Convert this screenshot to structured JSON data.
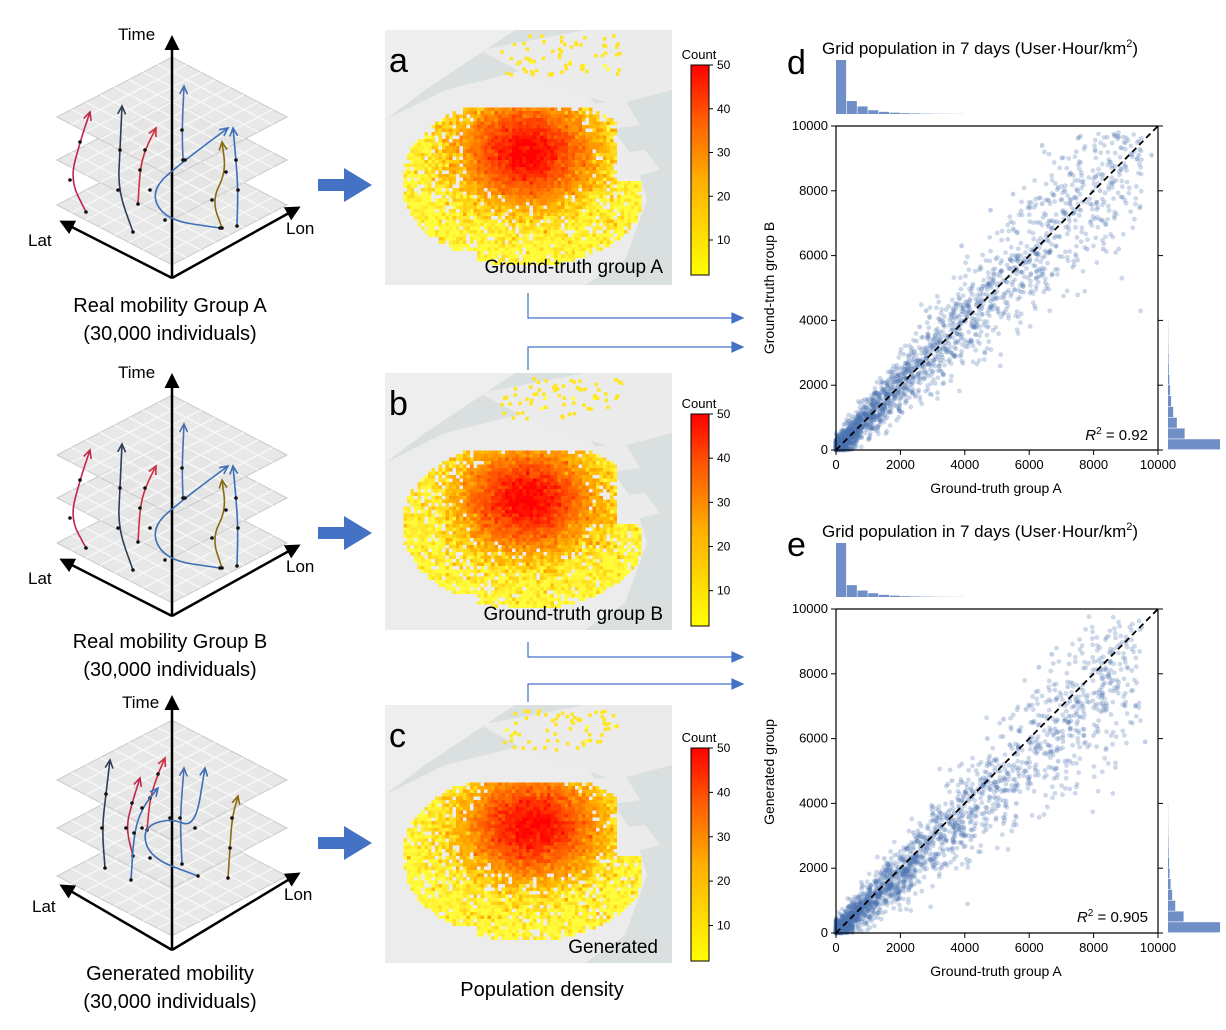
{
  "left_diagrams": [
    {
      "axis_time": "Time",
      "axis_lat": "Lat",
      "axis_lon": "Lon",
      "caption_line1": "Real mobility Group A",
      "caption_line2": "(30,000 individuals)"
    },
    {
      "axis_time": "Time",
      "axis_lat": "Lat",
      "axis_lon": "Lon",
      "caption_line1": "Real mobility Group B",
      "caption_line2": "(30,000 individuals)"
    },
    {
      "axis_time": "Time",
      "axis_lat": "Lat",
      "axis_lon": "Lon",
      "caption_line1": "Generated mobility",
      "caption_line2": "(30,000 individuals)"
    }
  ],
  "maps": [
    {
      "panel_letter": "a",
      "label": "Ground-truth group A",
      "colorbar_title": "Count",
      "ticks": [
        "50",
        "40",
        "30",
        "20",
        "10"
      ]
    },
    {
      "panel_letter": "b",
      "label": "Ground-truth group B",
      "colorbar_title": "Count",
      "ticks": [
        "50",
        "40",
        "30",
        "20",
        "10"
      ]
    },
    {
      "panel_letter": "c",
      "label": "Generated",
      "colorbar_title": "Count",
      "ticks": [
        "50",
        "40",
        "30",
        "20",
        "10"
      ]
    }
  ],
  "maps_caption": "Population density",
  "colors": {
    "arrow": "#4472c4",
    "scatter": "#4c72b0",
    "hist": "#6f8fc6",
    "heat_low": "#ffff00",
    "heat_high": "#ff0000"
  },
  "chart_data": [
    {
      "type": "scatter",
      "panel_letter": "d",
      "title_main": "Grid population in 7 days (User·Hour/km",
      "title_sup": "2",
      "title_close": ")",
      "xlabel": "Ground-truth group A",
      "ylabel": "Ground-truth group B",
      "xlim": [
        0,
        10000
      ],
      "ylim": [
        0,
        10000
      ],
      "xticks": [
        "0",
        "2000",
        "4000",
        "6000",
        "8000",
        "10000"
      ],
      "yticks": [
        "0",
        "2000",
        "4000",
        "6000",
        "8000",
        "10000"
      ],
      "r2_label": "R",
      "r2_value": " = 0.92",
      "identity_line": true,
      "top_hist": [
        1.0,
        0.24,
        0.14,
        0.07,
        0.04,
        0.025,
        0.015,
        0.01,
        0.006,
        0.004,
        0.003,
        0.002
      ],
      "right_hist": [
        1.0,
        0.32,
        0.17,
        0.1,
        0.06,
        0.04,
        0.025,
        0.015,
        0.01,
        0.006,
        0.004,
        0.003
      ],
      "points_sample": [
        [
          120,
          150
        ],
        [
          300,
          260
        ],
        [
          520,
          610
        ],
        [
          800,
          720
        ],
        [
          1100,
          1250
        ],
        [
          1500,
          1400
        ],
        [
          1900,
          2100
        ],
        [
          2400,
          2250
        ],
        [
          3000,
          3200
        ],
        [
          3500,
          3300
        ],
        [
          4100,
          4300
        ],
        [
          4800,
          4600
        ],
        [
          5400,
          5600
        ],
        [
          6000,
          5800
        ],
        [
          6600,
          6900
        ],
        [
          7100,
          7300
        ],
        [
          7600,
          7400
        ],
        [
          8200,
          8000
        ],
        [
          8800,
          8600
        ],
        [
          9400,
          9100
        ],
        [
          3900,
          6300
        ],
        [
          5500,
          7900
        ],
        [
          4800,
          7400
        ],
        [
          6400,
          7600
        ],
        [
          6900,
          8100
        ],
        [
          7500,
          8000
        ],
        [
          2800,
          4300
        ],
        [
          2600,
          3800
        ],
        [
          4200,
          3400
        ],
        [
          5200,
          4200
        ],
        [
          6700,
          5400
        ],
        [
          7800,
          6200
        ],
        [
          8900,
          7800
        ],
        [
          9800,
          9100
        ],
        [
          6400,
          9400
        ],
        [
          8300,
          6200
        ]
      ]
    },
    {
      "type": "scatter",
      "panel_letter": "e",
      "title_main": "Grid population in 7 days (User·Hour/km",
      "title_sup": "2",
      "title_close": ")",
      "xlabel": "Ground-truth group A",
      "ylabel": "Generated group",
      "xlim": [
        0,
        10000
      ],
      "ylim": [
        0,
        10000
      ],
      "xticks": [
        "0",
        "2000",
        "4000",
        "6000",
        "8000",
        "10000"
      ],
      "yticks": [
        "0",
        "2000",
        "4000",
        "6000",
        "8000",
        "10000"
      ],
      "r2_label": "R",
      "r2_value": " = 0.905",
      "identity_line": true,
      "top_hist": [
        1.0,
        0.22,
        0.12,
        0.07,
        0.04,
        0.025,
        0.015,
        0.01,
        0.006,
        0.004,
        0.003,
        0.002
      ],
      "right_hist": [
        1.0,
        0.3,
        0.14,
        0.08,
        0.05,
        0.03,
        0.02,
        0.012,
        0.008,
        0.005,
        0.003,
        0.002
      ],
      "points_sample": [
        [
          100,
          120
        ],
        [
          320,
          300
        ],
        [
          600,
          520
        ],
        [
          900,
          820
        ],
        [
          1300,
          1150
        ],
        [
          1700,
          1500
        ],
        [
          2200,
          1900
        ],
        [
          2700,
          2300
        ],
        [
          3200,
          2900
        ],
        [
          3800,
          3300
        ],
        [
          4400,
          3900
        ],
        [
          5000,
          4500
        ],
        [
          5600,
          5100
        ],
        [
          6200,
          5700
        ],
        [
          6800,
          6300
        ],
        [
          7400,
          7000
        ],
        [
          8000,
          7400
        ],
        [
          8600,
          7800
        ],
        [
          9300,
          7000
        ],
        [
          9600,
          5900
        ],
        [
          6700,
          8600
        ],
        [
          6300,
          8200
        ],
        [
          5200,
          6600
        ],
        [
          4700,
          6000
        ],
        [
          7200,
          7600
        ],
        [
          8200,
          7500
        ],
        [
          3000,
          3900
        ],
        [
          2400,
          3100
        ],
        [
          4300,
          3000
        ],
        [
          5600,
          4000
        ],
        [
          6900,
          5300
        ],
        [
          7700,
          6100
        ],
        [
          8400,
          6900
        ],
        [
          3600,
          4700
        ],
        [
          5900,
          6900
        ],
        [
          1500,
          2300
        ]
      ]
    }
  ]
}
